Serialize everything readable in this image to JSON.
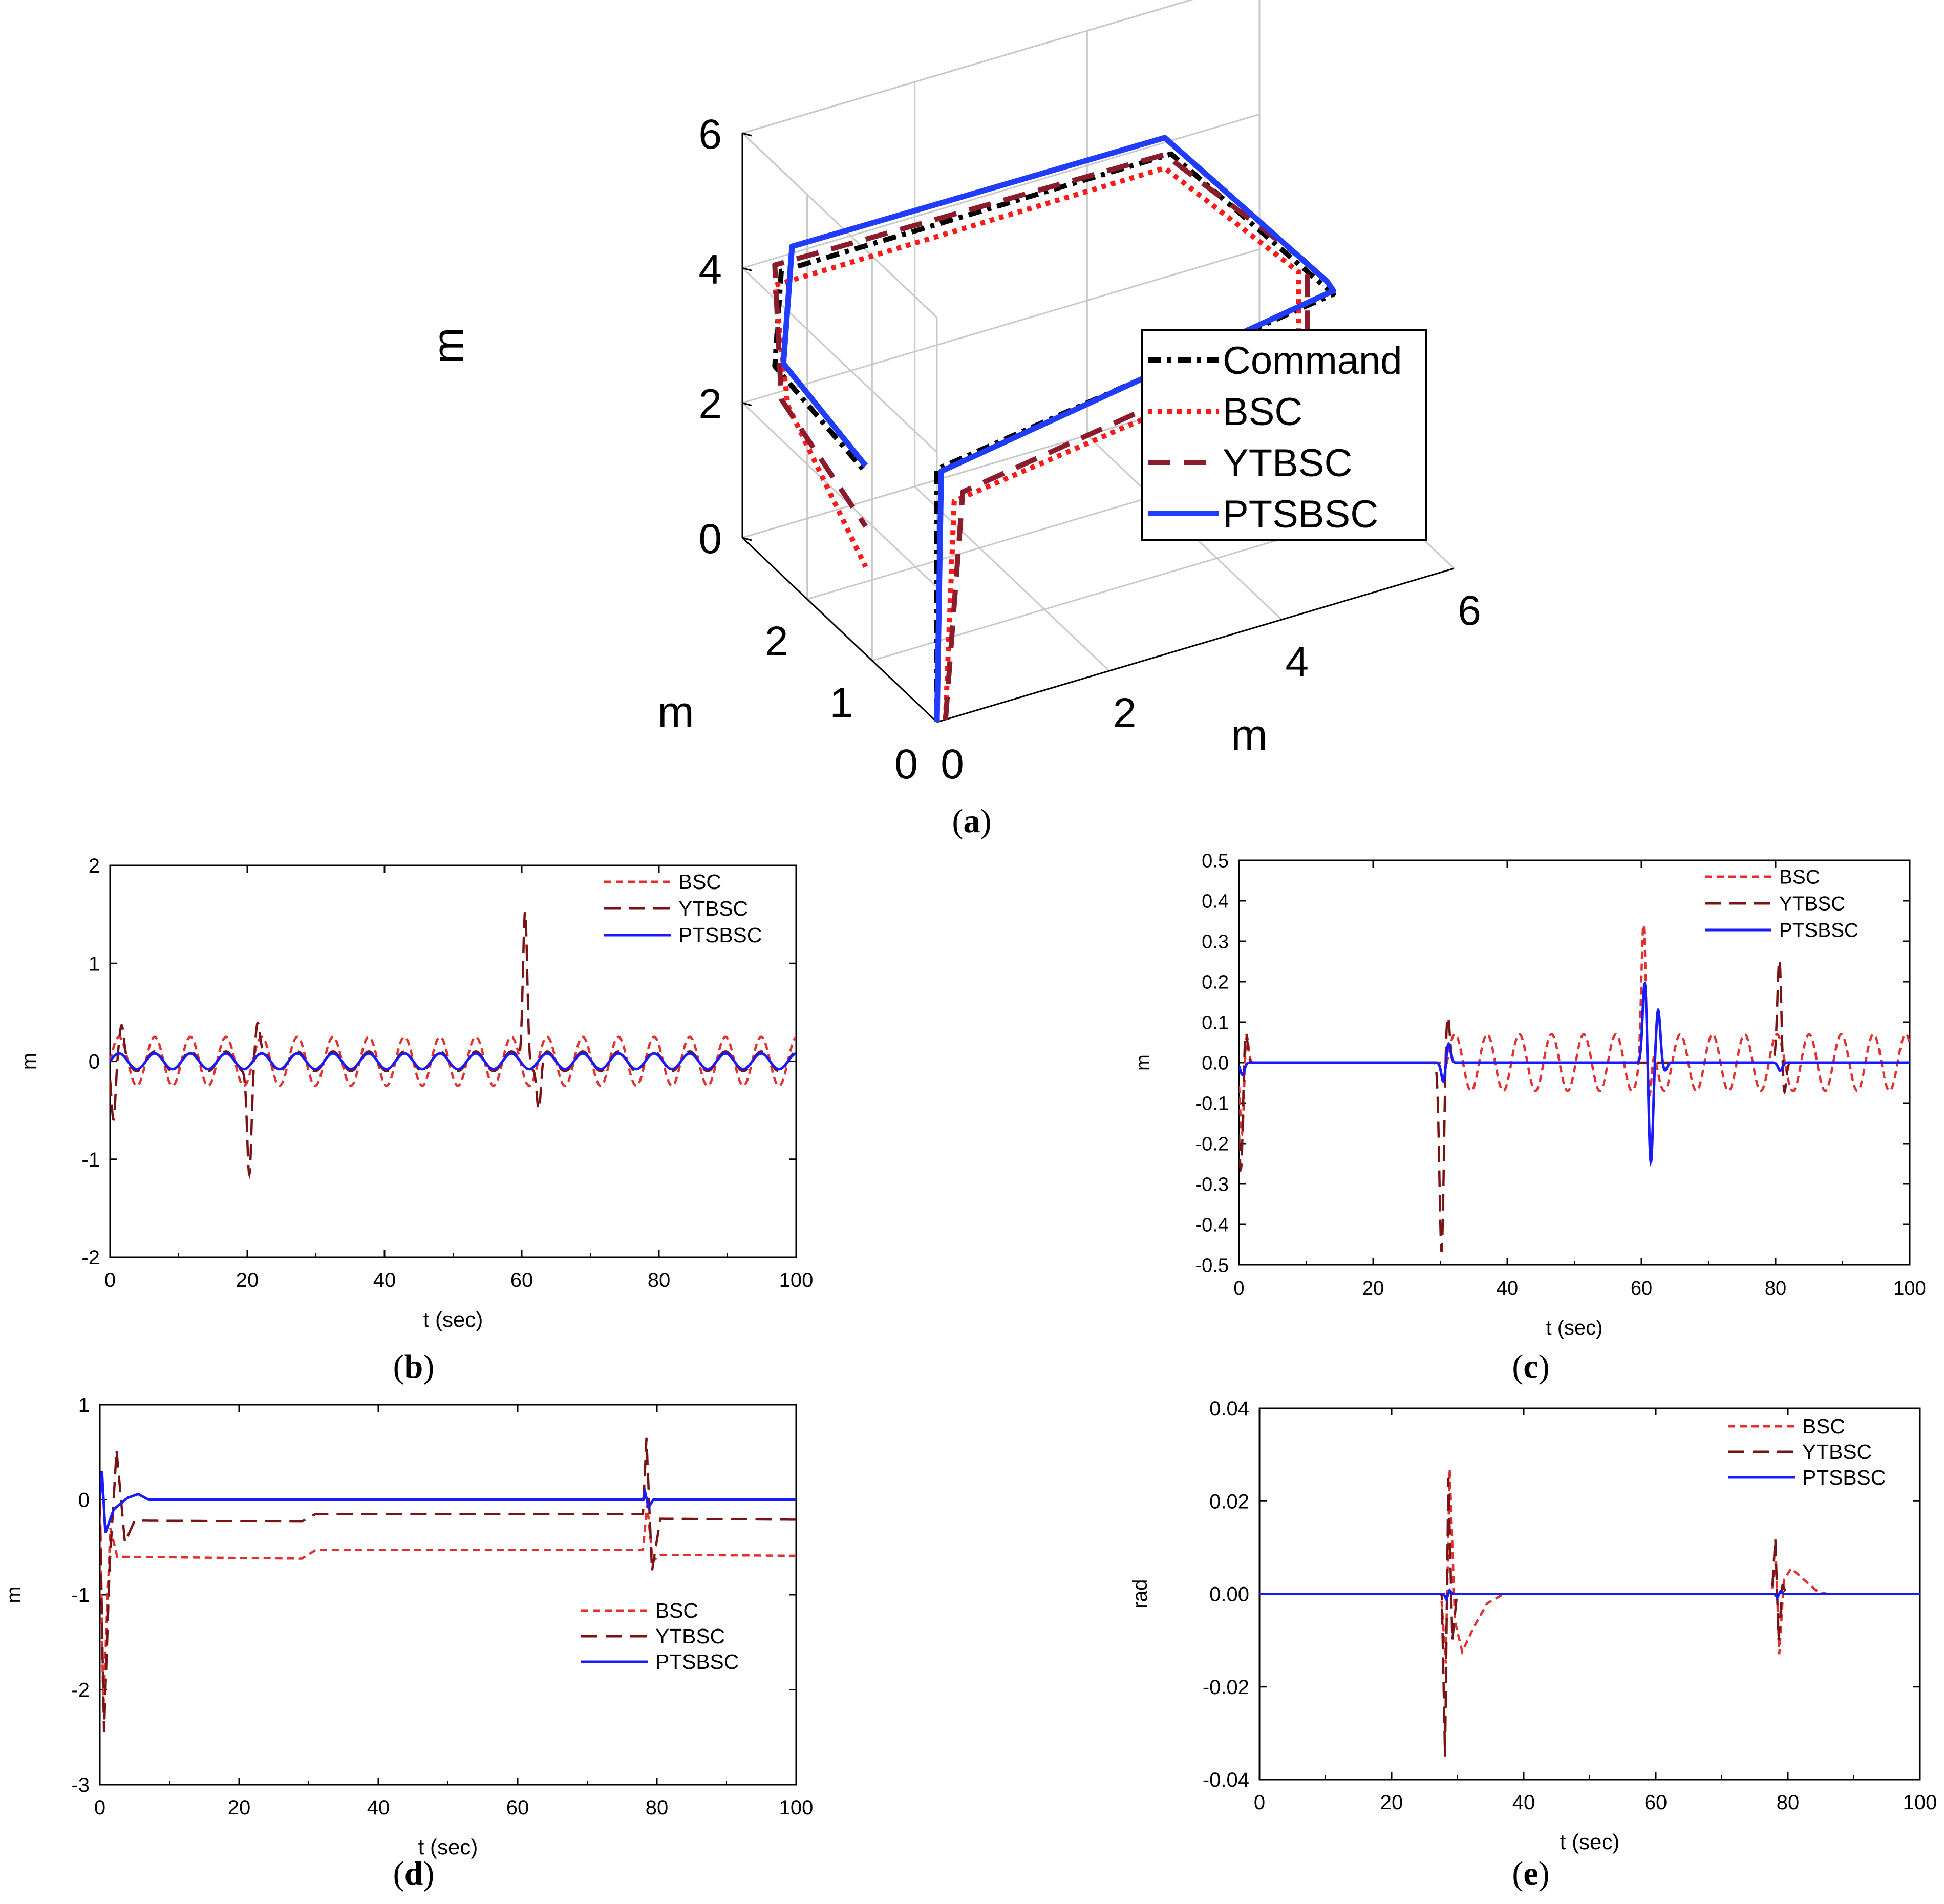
{
  "figure": {
    "captions": [
      "(a)",
      "(b)",
      "(c)",
      "(d)",
      "(e)"
    ],
    "caption_letters": [
      "a",
      "b",
      "c",
      "d",
      "e"
    ]
  },
  "colors": {
    "command": "#000000",
    "bsc": "#ff1a1a",
    "bsc_small": "#e03030",
    "ytbsc": "#8b1c2c",
    "ytbsc_small": "#7a1414",
    "ptsbsc": "#1f3cff",
    "ptsbsc_small": "#1a1aff",
    "axis": "#000000",
    "grid": "#c8c8c8"
  },
  "chart_data": [
    {
      "id": "a",
      "type": "line",
      "dims": "3d",
      "title": "",
      "x_label": "m",
      "y_label": "m",
      "z_label": "m",
      "x_range": [
        0,
        3
      ],
      "y_range": [
        0,
        6
      ],
      "z_range": [
        0,
        6
      ],
      "x_ticks": [
        "0",
        "1",
        "2"
      ],
      "y_ticks": [
        "0",
        "2",
        "4",
        "6"
      ],
      "z_ticks": [
        "0",
        "2",
        "4",
        "6"
      ],
      "legend": [
        "Command",
        "BSC",
        "YTBSC",
        "PTSBSC"
      ],
      "legend_position": "right",
      "series": [
        {
          "name": "Command",
          "style": "dashdot",
          "points": [
            [
              0,
              0,
              0
            ],
            [
              0,
              0,
              3.75
            ],
            [
              0,
              4.6,
              4.6
            ],
            [
              0,
              4.6,
              4.6
            ],
            [
              2.5,
              4.6,
              4.4
            ],
            [
              2.4,
              0,
              4.5
            ],
            [
              2.5,
              0,
              3
            ],
            [
              1.1,
              0,
              2.7
            ]
          ]
        },
        {
          "name": "BSC",
          "style": "dotted",
          "points": [
            [
              0,
              0.1,
              0
            ],
            [
              0,
              0.2,
              3.2
            ],
            [
              0,
              4.2,
              3.9
            ],
            [
              0.4,
              4.5,
              4.6
            ],
            [
              2.6,
              4.6,
              4.1
            ],
            [
              2.5,
              0,
              4.2
            ],
            [
              2.3,
              0,
              2.6
            ],
            [
              1.1,
              0,
              1.3
            ]
          ]
        },
        {
          "name": "YTBSC",
          "style": "dashed",
          "points": [
            [
              0,
              0.1,
              0
            ],
            [
              0,
              0.3,
              3.3
            ],
            [
              0,
              4.3,
              4.1
            ],
            [
              0.4,
              4.6,
              4.7
            ],
            [
              2.6,
              4.6,
              4.3
            ],
            [
              2.5,
              0,
              4.5
            ],
            [
              2.4,
              0,
              2.6
            ],
            [
              1.1,
              0,
              1.9
            ]
          ]
        },
        {
          "name": "PTSBSC",
          "style": "solid",
          "points": [
            [
              0,
              0,
              0
            ],
            [
              0,
              0.05,
              3.7
            ],
            [
              0,
              4.6,
              4.65
            ],
            [
              0.1,
              4.6,
              4.7
            ],
            [
              2.6,
              4.6,
              4.55
            ],
            [
              2.5,
              0.2,
              4.7
            ],
            [
              2.5,
              0.1,
              3.0
            ],
            [
              1.1,
              0,
              2.8
            ]
          ]
        }
      ]
    },
    {
      "id": "b",
      "type": "line",
      "title": "",
      "xlabel": "t (sec)",
      "ylabel": "m",
      "xlim": [
        0,
        100
      ],
      "ylim": [
        -2,
        2
      ],
      "xticks": [
        "0",
        "20",
        "40",
        "60",
        "80",
        "100"
      ],
      "yticks": [
        "-2",
        "-1",
        "0",
        "1",
        "2"
      ],
      "legend": [
        "BSC",
        "YTBSC",
        "PTSBSC"
      ],
      "legend_position": "top-right",
      "signals": {
        "BSC": {
          "kind": "sine",
          "amplitude": 0.25,
          "period_sec": 5.2
        },
        "YTBSC": {
          "kind": "sine_with_spikes",
          "amplitude": 0.1,
          "period_sec": 5.2,
          "spikes": [
            {
              "t": 0.5,
              "value": -0.65
            },
            {
              "t": 1.7,
              "value": 0.28
            },
            {
              "t": 20.3,
              "value": -1.1
            },
            {
              "t": 21.5,
              "value": 0.32
            },
            {
              "t": 60.5,
              "value": 1.6
            },
            {
              "t": 62.5,
              "value": -0.5
            }
          ]
        },
        "PTSBSC": {
          "kind": "sine",
          "amplitude": 0.08,
          "period_sec": 5.2
        }
      }
    },
    {
      "id": "c",
      "type": "line",
      "title": "",
      "xlabel": "t (sec)",
      "ylabel": "m",
      "xlim": [
        0,
        100
      ],
      "ylim": [
        -0.5,
        0.5
      ],
      "xticks": [
        "0",
        "20",
        "40",
        "60",
        "80",
        "100"
      ],
      "yticks": [
        "-0.5",
        "-0.4",
        "-0.3",
        "-0.2",
        "-0.1",
        "0.0",
        "0.1",
        "0.2",
        "0.3",
        "0.4",
        "0.5"
      ],
      "legend": [
        "BSC",
        "YTBSC",
        "PTSBSC"
      ],
      "legend_position": "top-right",
      "signals": {
        "BSC": {
          "kind": "sine_window",
          "amplitude": 0.07,
          "period_sec": 4.8,
          "t_start": 31,
          "t_end": 100,
          "spikes": [
            {
              "t": 0.5,
              "value": -0.2
            },
            {
              "t": 1.0,
              "value": 0.1
            },
            {
              "t": 60.3,
              "value": 0.3
            },
            {
              "t": 61.2,
              "value": -0.15
            }
          ]
        },
        "YTBSC": {
          "kind": "spikes",
          "spikes": [
            {
              "t": 0.3,
              "value": -0.28
            },
            {
              "t": 0.9,
              "value": 0.1
            },
            {
              "t": 30.2,
              "value": -0.47
            },
            {
              "t": 31.1,
              "value": 0.12
            },
            {
              "t": 80.6,
              "value": 0.27
            },
            {
              "t": 81.2,
              "value": -0.1
            }
          ]
        },
        "PTSBSC": {
          "kind": "spikes",
          "spikes": [
            {
              "t": 0.5,
              "value": -0.03
            },
            {
              "t": 30.5,
              "value": -0.05
            },
            {
              "t": 31.2,
              "value": 0.05
            },
            {
              "t": 60.5,
              "value": 0.2
            },
            {
              "t": 61.4,
              "value": -0.25
            },
            {
              "t": 62.5,
              "value": 0.13
            },
            {
              "t": 63.5,
              "value": -0.02
            },
            {
              "t": 80.7,
              "value": -0.02
            }
          ]
        }
      }
    },
    {
      "id": "d",
      "type": "line",
      "title": "",
      "xlabel": "t (sec)",
      "ylabel": "m",
      "xlim": [
        0,
        100
      ],
      "ylim": [
        -3,
        1
      ],
      "xticks": [
        "0",
        "20",
        "40",
        "60",
        "80",
        "100"
      ],
      "yticks": [
        "-3",
        "-2",
        "-1",
        "0",
        "1"
      ],
      "legend": [
        "BSC",
        "YTBSC",
        "PTSBSC"
      ],
      "legend_position": "center-right",
      "signals": {
        "BSC": {
          "kind": "piecewise",
          "points": [
            [
              0,
              0
            ],
            [
              0.5,
              -2.2
            ],
            [
              1.5,
              -0.3
            ],
            [
              2.5,
              -0.6
            ],
            [
              29,
              -0.62
            ],
            [
              31,
              -0.53
            ],
            [
              78,
              -0.53
            ],
            [
              78.6,
              -0.05
            ],
            [
              79.4,
              -0.65
            ],
            [
              80.5,
              -0.58
            ],
            [
              100,
              -0.59
            ]
          ]
        },
        "YTBSC": {
          "kind": "piecewise",
          "points": [
            [
              0,
              0
            ],
            [
              0.6,
              -2.45
            ],
            [
              1.4,
              -0.7
            ],
            [
              2.4,
              0.52
            ],
            [
              3.6,
              -0.45
            ],
            [
              5,
              -0.22
            ],
            [
              29,
              -0.23
            ],
            [
              31,
              -0.15
            ],
            [
              78,
              -0.15
            ],
            [
              78.5,
              0.65
            ],
            [
              79.3,
              -0.75
            ],
            [
              80.5,
              -0.2
            ],
            [
              100,
              -0.21
            ]
          ]
        },
        "PTSBSC": {
          "kind": "piecewise",
          "points": [
            [
              0,
              0
            ],
            [
              0.3,
              0.3
            ],
            [
              0.8,
              -0.35
            ],
            [
              2,
              -0.1
            ],
            [
              4,
              0.02
            ],
            [
              5.5,
              0.06
            ],
            [
              7,
              0
            ],
            [
              78,
              0
            ],
            [
              78.3,
              0.08
            ],
            [
              78.8,
              -0.08
            ],
            [
              79.5,
              0
            ],
            [
              100,
              0
            ]
          ]
        }
      }
    },
    {
      "id": "e",
      "type": "line",
      "title": "",
      "xlabel": "t (sec)",
      "ylabel": "rad",
      "xlim": [
        0,
        100
      ],
      "ylim": [
        -0.04,
        0.04
      ],
      "xticks": [
        "0",
        "20",
        "40",
        "60",
        "80",
        "100"
      ],
      "yticks": [
        "-0.04",
        "-0.02",
        "0.00",
        "0.02",
        "0.04"
      ],
      "legend": [
        "BSC",
        "YTBSC",
        "PTSBSC"
      ],
      "legend_position": "top-right",
      "signals": {
        "BSC": {
          "kind": "piecewise",
          "points": [
            [
              0,
              0
            ],
            [
              27.5,
              0
            ],
            [
              28.2,
              -0.015
            ],
            [
              28.8,
              0.027
            ],
            [
              29.6,
              -0.006
            ],
            [
              30.7,
              -0.0125
            ],
            [
              32.5,
              -0.007
            ],
            [
              34.5,
              -0.002
            ],
            [
              37,
              0
            ],
            [
              77.5,
              0
            ],
            [
              78.2,
              0.007
            ],
            [
              78.7,
              -0.013
            ],
            [
              79.4,
              0.003
            ],
            [
              80.5,
              0.0055
            ],
            [
              82.5,
              0.003
            ],
            [
              84.5,
              0.0005
            ],
            [
              86,
              0
            ],
            [
              100,
              0
            ]
          ]
        },
        "YTBSC": {
          "kind": "piecewise",
          "points": [
            [
              0,
              0
            ],
            [
              27.6,
              0
            ],
            [
              28.1,
              -0.035
            ],
            [
              28.6,
              0.025
            ],
            [
              29.2,
              -0.01
            ],
            [
              29.9,
              0
            ],
            [
              77.6,
              0
            ],
            [
              78.1,
              0.012
            ],
            [
              78.6,
              -0.01
            ],
            [
              79.2,
              0.002
            ],
            [
              79.8,
              0
            ],
            [
              100,
              0
            ]
          ]
        },
        "PTSBSC": {
          "kind": "piecewise",
          "points": [
            [
              0,
              0
            ],
            [
              27.9,
              0
            ],
            [
              28.3,
              -0.0012
            ],
            [
              28.8,
              0.0008
            ],
            [
              29.3,
              0
            ],
            [
              78,
              0
            ],
            [
              78.4,
              -0.0008
            ],
            [
              78.9,
              0.0006
            ],
            [
              79.4,
              0
            ],
            [
              100,
              0
            ]
          ]
        }
      }
    }
  ]
}
